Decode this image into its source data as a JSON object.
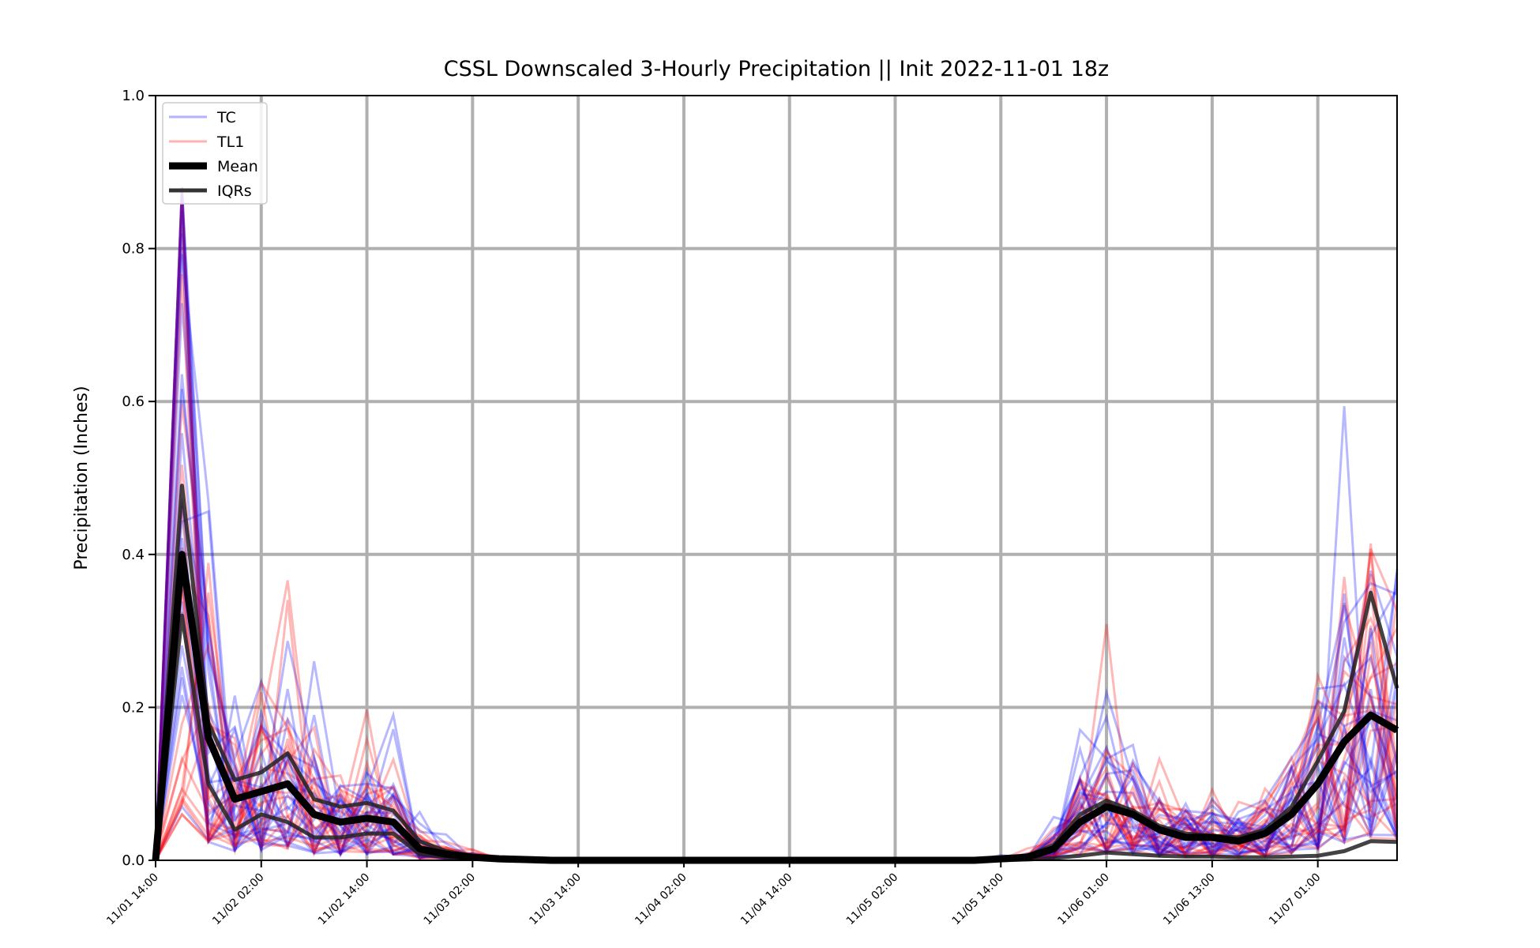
{
  "chart_data": {
    "type": "line",
    "title": "CSSL Downscaled 3-Hourly Precipitation || Init 2022-11-01 18z",
    "xlabel": "",
    "ylabel": "Precipitation (Inches)",
    "ylim": [
      0,
      1.0
    ],
    "yticks": [
      "0.0",
      "0.2",
      "0.4",
      "0.6",
      "0.8",
      "1.0"
    ],
    "xlim_hours": [
      0,
      141
    ],
    "xticks": [
      {
        "label": "11/01 14:00",
        "hour": 0
      },
      {
        "label": "11/02 02:00",
        "hour": 12
      },
      {
        "label": "11/02 14:00",
        "hour": 24
      },
      {
        "label": "11/03 02:00",
        "hour": 36
      },
      {
        "label": "11/03 14:00",
        "hour": 48
      },
      {
        "label": "11/04 02:00",
        "hour": 60
      },
      {
        "label": "11/04 14:00",
        "hour": 72
      },
      {
        "label": "11/05 02:00",
        "hour": 84
      },
      {
        "label": "11/05 14:00",
        "hour": 96
      },
      {
        "label": "11/06 01:00",
        "hour": 108
      },
      {
        "label": "11/06 13:00",
        "hour": 120
      },
      {
        "label": "11/07 01:00",
        "hour": 132
      }
    ],
    "grid": true,
    "legend_position": "top-left",
    "legend": [
      {
        "label": "TC",
        "color": "#0000ff",
        "style": "thin-translucent"
      },
      {
        "label": "TL1",
        "color": "#ff0000",
        "style": "thin-translucent"
      },
      {
        "label": "Mean",
        "color": "#000000",
        "style": "thick"
      },
      {
        "label": "IQRs",
        "color": "#333333",
        "style": "medium"
      }
    ],
    "x_hours": [
      0,
      3,
      6,
      9,
      12,
      15,
      18,
      21,
      24,
      27,
      30,
      33,
      36,
      39,
      42,
      45,
      48,
      51,
      54,
      57,
      60,
      63,
      66,
      69,
      72,
      75,
      78,
      81,
      84,
      87,
      90,
      93,
      96,
      99,
      102,
      105,
      108,
      111,
      114,
      117,
      120,
      123,
      126,
      129,
      132,
      135,
      138,
      141
    ],
    "series": [
      {
        "name": "Mean",
        "values": [
          0.0,
          0.4,
          0.16,
          0.08,
          0.09,
          0.1,
          0.06,
          0.05,
          0.055,
          0.05,
          0.015,
          0.008,
          0.004,
          0.002,
          0.001,
          0.0,
          0.0,
          0.0,
          0.0,
          0.0,
          0.0,
          0.0,
          0.0,
          0.0,
          0.0,
          0.0,
          0.0,
          0.0,
          0.0,
          0.0,
          0.0,
          0.0,
          0.002,
          0.004,
          0.015,
          0.05,
          0.07,
          0.06,
          0.04,
          0.03,
          0.03,
          0.025,
          0.035,
          0.06,
          0.1,
          0.155,
          0.19,
          0.17
        ]
      },
      {
        "name": "IQR upper",
        "values": [
          0.0,
          0.49,
          0.18,
          0.105,
          0.115,
          0.14,
          0.08,
          0.07,
          0.075,
          0.065,
          0.025,
          0.012,
          0.006,
          0.003,
          0.001,
          0.0,
          0.0,
          0.0,
          0.0,
          0.0,
          0.0,
          0.0,
          0.0,
          0.0,
          0.0,
          0.0,
          0.0,
          0.0,
          0.0,
          0.0,
          0.0,
          0.0,
          0.003,
          0.006,
          0.02,
          0.06,
          0.078,
          0.065,
          0.045,
          0.035,
          0.032,
          0.03,
          0.04,
          0.07,
          0.13,
          0.195,
          0.35,
          0.225
        ]
      },
      {
        "name": "IQR lower",
        "values": [
          0.0,
          0.32,
          0.1,
          0.04,
          0.06,
          0.05,
          0.03,
          0.03,
          0.035,
          0.035,
          0.008,
          0.004,
          0.002,
          0.001,
          0.0,
          0.0,
          0.0,
          0.0,
          0.0,
          0.0,
          0.0,
          0.0,
          0.0,
          0.0,
          0.0,
          0.0,
          0.0,
          0.0,
          0.0,
          0.0,
          0.0,
          0.0,
          0.0,
          0.001,
          0.003,
          0.006,
          0.01,
          0.008,
          0.006,
          0.005,
          0.005,
          0.004,
          0.004,
          0.005,
          0.006,
          0.012,
          0.025,
          0.024
        ]
      }
    ]
  }
}
